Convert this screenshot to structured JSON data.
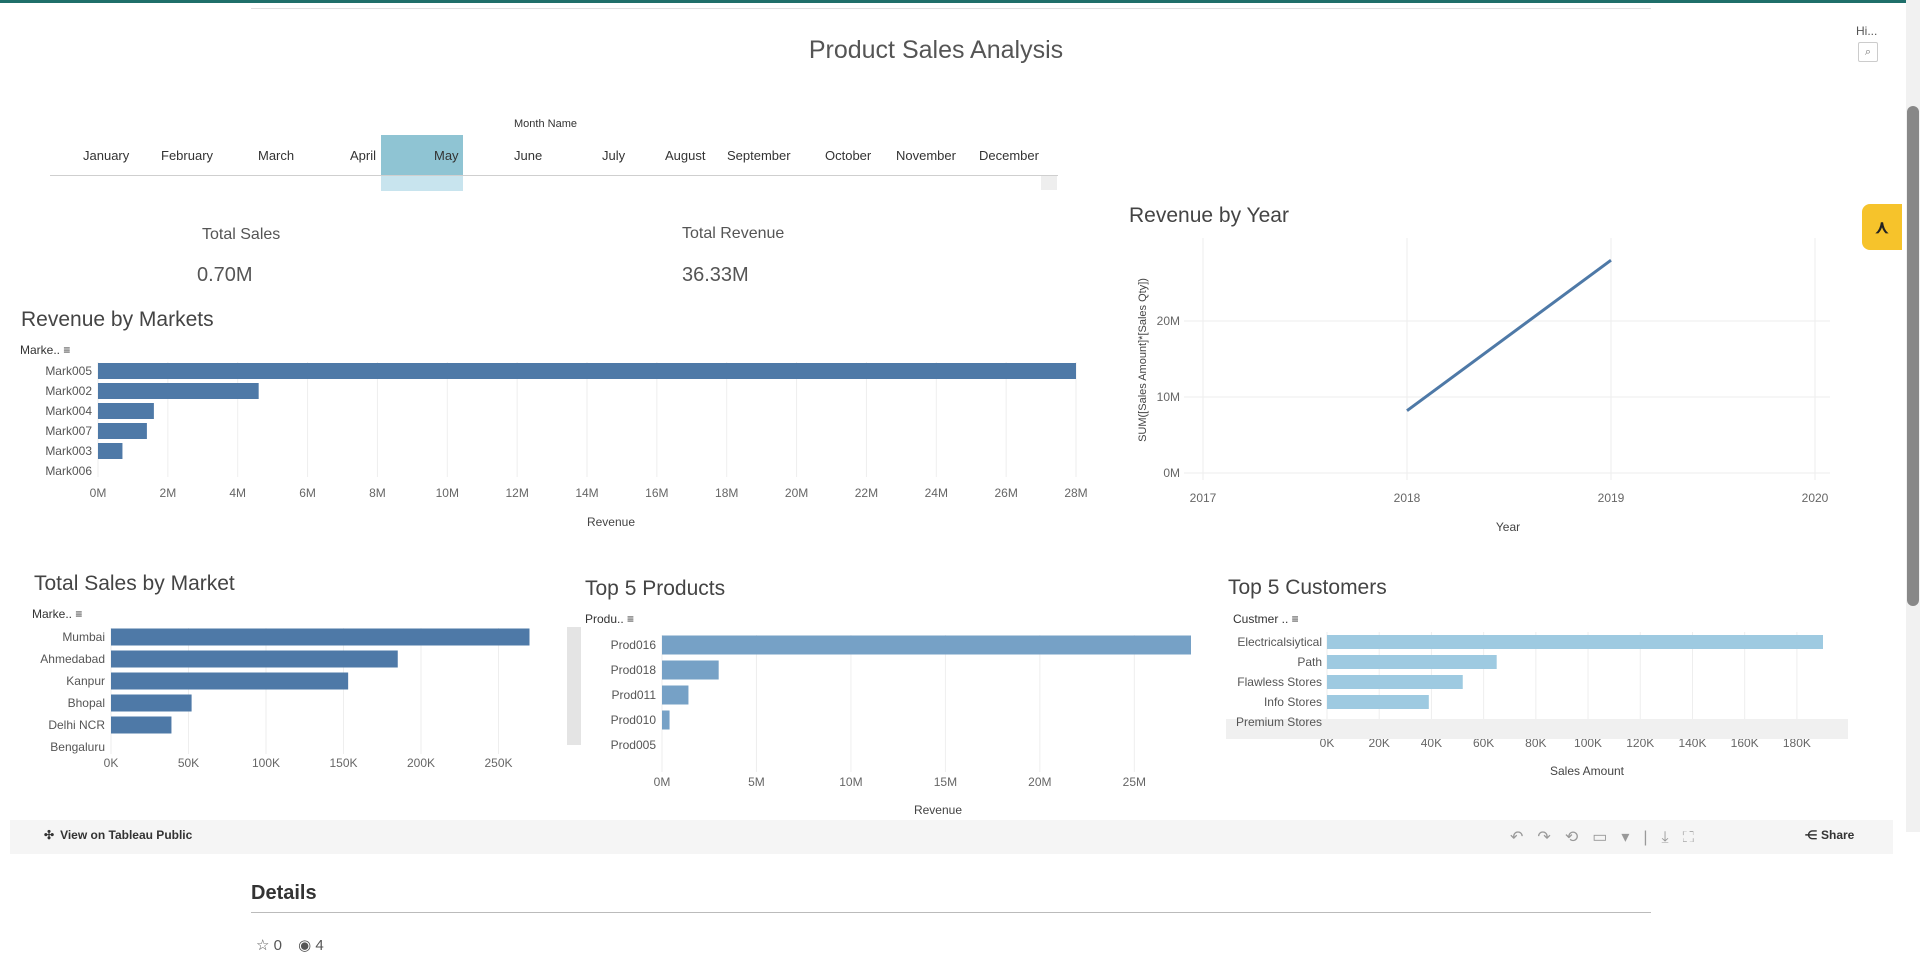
{
  "dashboard": {
    "title": "Product Sales Analysis",
    "hidden_label": "Hi...",
    "filter_label": "Month Name",
    "months": [
      "January",
      "February",
      "March",
      "April",
      "May",
      "June",
      "July",
      "August",
      "September",
      "October",
      "November",
      "December"
    ],
    "selected_month": "May"
  },
  "kpis": {
    "total_sales": {
      "label": "Total Sales",
      "value": "0.70M"
    },
    "total_revenue": {
      "label": "Total Revenue",
      "value": "36.33M"
    }
  },
  "chart_data": [
    {
      "id": "revenue_by_markets",
      "type": "bar",
      "title": "Revenue by Markets",
      "header": "Marke..",
      "orientation": "horizontal",
      "categories": [
        "Mark005",
        "Mark002",
        "Mark004",
        "Mark007",
        "Mark003",
        "Mark006"
      ],
      "values": [
        28.0,
        4.6,
        1.6,
        1.4,
        0.7,
        0
      ],
      "unit": "M",
      "xlabel": "Revenue",
      "xlim": [
        0,
        28
      ],
      "ticks": [
        "0M",
        "2M",
        "4M",
        "6M",
        "8M",
        "10M",
        "12M",
        "14M",
        "16M",
        "18M",
        "20M",
        "22M",
        "24M",
        "26M",
        "28M"
      ],
      "color": "#4e79a7"
    },
    {
      "id": "revenue_by_year",
      "type": "line",
      "title": "Revenue by Year",
      "x": [
        2018,
        2019
      ],
      "y": [
        8.2,
        28.0
      ],
      "unit": "M",
      "xlabel": "Year",
      "ylabel": "SUM([Sales Amount]*[Sales Qty])",
      "xlim": [
        2017,
        2020
      ],
      "ylim": [
        0,
        30
      ],
      "xticks": [
        "2017",
        "2018",
        "2019",
        "2020"
      ],
      "yticks": [
        "0M",
        "10M",
        "20M"
      ],
      "color": "#4e79a7"
    },
    {
      "id": "total_sales_by_market",
      "type": "bar",
      "title": "Total Sales by Market",
      "header": "Marke..",
      "orientation": "horizontal",
      "categories": [
        "Mumbai",
        "Ahmedabad",
        "Kanpur",
        "Bhopal",
        "Delhi NCR",
        "Bengaluru"
      ],
      "values": [
        270,
        185,
        153,
        52,
        39,
        0
      ],
      "unit": "K",
      "xlim": [
        0,
        280
      ],
      "ticks": [
        "0K",
        "50K",
        "100K",
        "150K",
        "200K",
        "250K"
      ],
      "color": "#4e79a7"
    },
    {
      "id": "top5_products",
      "type": "bar",
      "title": "Top 5 Products",
      "header": "Produ..",
      "orientation": "horizontal",
      "categories": [
        "Prod016",
        "Prod018",
        "Prod011",
        "Prod010",
        "Prod005"
      ],
      "values": [
        28.0,
        3.0,
        1.4,
        0.4,
        0
      ],
      "unit": "M",
      "xlabel": "Revenue",
      "xlim": [
        0,
        28
      ],
      "ticks": [
        "0M",
        "5M",
        "10M",
        "15M",
        "20M",
        "25M"
      ],
      "color": "#76a1c6"
    },
    {
      "id": "top5_customers",
      "type": "bar",
      "title": "Top 5 Customers",
      "header": "Custmer ..",
      "orientation": "horizontal",
      "categories": [
        "Electricalsiytical",
        "Path",
        "Flawless Stores",
        "Info Stores",
        "Premium Stores"
      ],
      "values": [
        190,
        65,
        52,
        39,
        0
      ],
      "unit": "K",
      "xlabel": "Sales Amount",
      "xlim": [
        0,
        190
      ],
      "ticks": [
        "0K",
        "20K",
        "40K",
        "60K",
        "80K",
        "100K",
        "120K",
        "140K",
        "160K",
        "180K"
      ],
      "color": "#9ecae1"
    }
  ],
  "footer": {
    "view_on": "View on Tableau Public",
    "share": "Share"
  },
  "details": {
    "heading": "Details",
    "favorites": "0",
    "views": "4"
  }
}
